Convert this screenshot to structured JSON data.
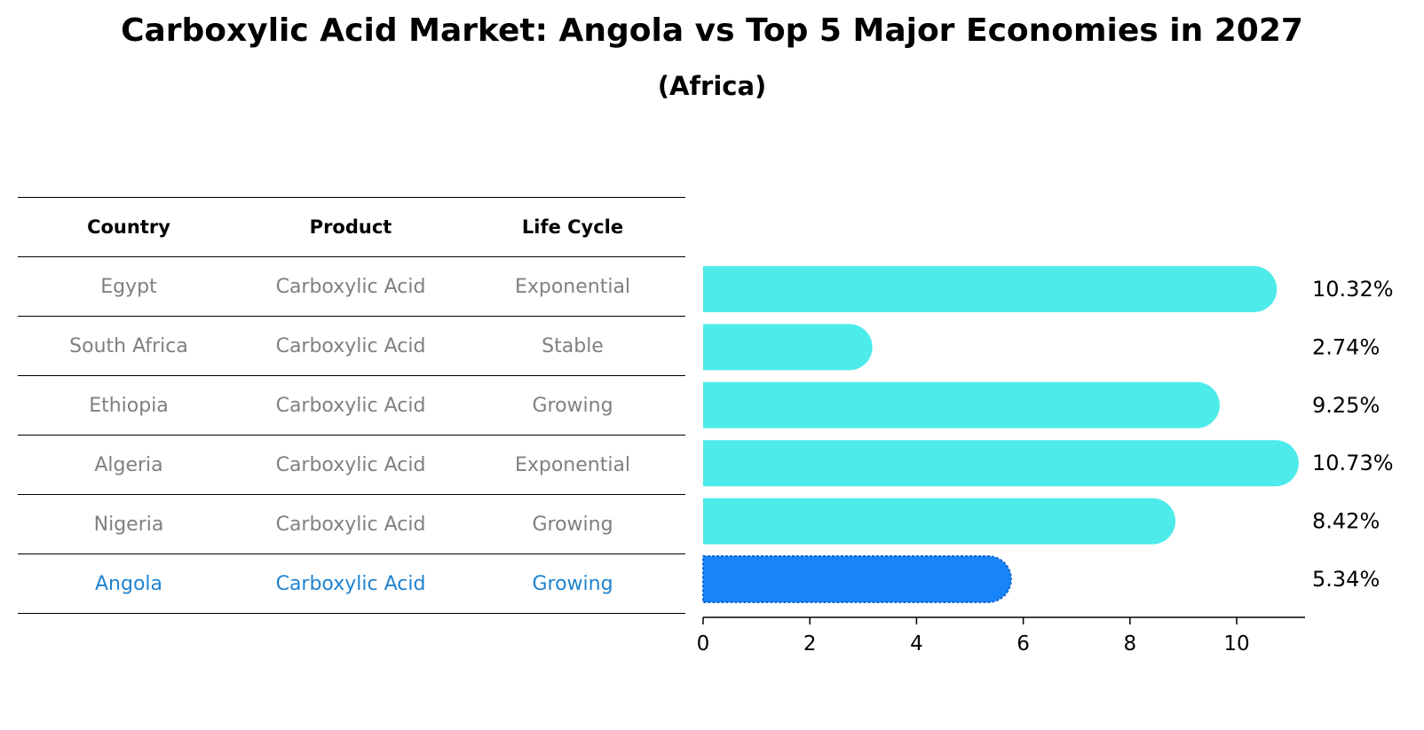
{
  "chart_data": {
    "type": "bar",
    "orientation": "horizontal",
    "title": "Carboxylic Acid Market: Angola vs Top 5 Major Economies in 2027",
    "subtitle": "(Africa)",
    "categories": [
      "Egypt",
      "South Africa",
      "Ethiopia",
      "Algeria",
      "Nigeria",
      "Angola"
    ],
    "values": [
      10.32,
      2.74,
      9.25,
      10.73,
      8.42,
      5.34
    ],
    "value_labels": [
      "10.32%",
      "2.74%",
      "9.25%",
      "10.73%",
      "8.42%",
      "5.34%"
    ],
    "highlight": "Angola",
    "xlim": [
      0,
      11.3
    ],
    "xticks": [
      "0",
      "2",
      "4",
      "6",
      "8",
      "10"
    ],
    "colors": {
      "bar": "#4debea",
      "highlight_bar": "#1984f7",
      "highlight_text": "#1f83d0",
      "muted_text": "#808080"
    },
    "table": {
      "headers": [
        "Country",
        "Product",
        "Life Cycle"
      ],
      "rows": [
        [
          "Egypt",
          "Carboxylic Acid",
          "Exponential"
        ],
        [
          "South Africa",
          "Carboxylic Acid",
          "Stable"
        ],
        [
          "Ethiopia",
          "Carboxylic Acid",
          "Growing"
        ],
        [
          "Algeria",
          "Carboxylic Acid",
          "Exponential"
        ],
        [
          "Nigeria",
          "Carboxylic Acid",
          "Growing"
        ],
        [
          "Angola",
          "Carboxylic Acid",
          "Growing"
        ]
      ]
    }
  }
}
